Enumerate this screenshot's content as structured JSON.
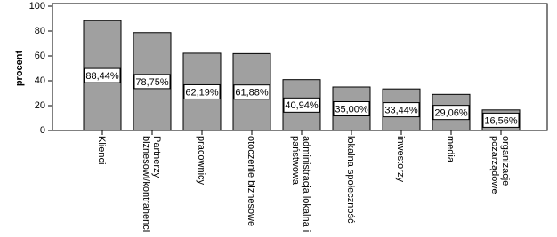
{
  "chart_data": {
    "type": "bar",
    "y_label": "procent",
    "categories": [
      "Klienci",
      "Partnerzy\nbiznesowi/kontrahenci",
      "pracownicy",
      "otoczenie biznesowe",
      "administracja lokalna i\npaństwowa",
      "lokalna społeczność",
      "inwestorzy",
      "media",
      "organizacje\npozarządowe"
    ],
    "values": [
      88.44,
      78.75,
      62.19,
      61.88,
      40.94,
      35.0,
      33.44,
      29.06,
      16.56
    ],
    "value_labels": [
      "88,44%",
      "78,75%",
      "62,19%",
      "61,88%",
      "40,94%",
      "35,00%",
      "33,44%",
      "29,06%",
      "16,56%"
    ],
    "color": "#a0a0a0",
    "ylim": [
      0,
      100
    ],
    "yticks": [
      0,
      20,
      40,
      60,
      80,
      100
    ]
  }
}
